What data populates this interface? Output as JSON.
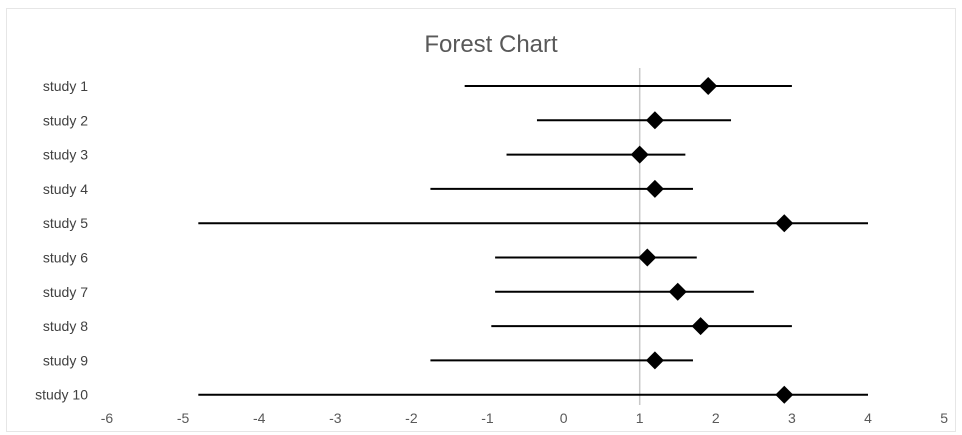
{
  "chart_data": {
    "type": "forest",
    "title": "Forest Chart",
    "xlim": [
      -6,
      5
    ],
    "x_ticks": [
      -6,
      -5,
      -4,
      -3,
      -2,
      -1,
      0,
      1,
      2,
      3,
      4,
      5
    ],
    "reference_line": 1,
    "grid": false,
    "legend": "none",
    "colors": {
      "marker": "#000000",
      "interval": "#000000",
      "reference": "#c8c8c8",
      "text": "#595959"
    },
    "studies": [
      {
        "label": "study 1",
        "estimate": 1.9,
        "lower": -1.3,
        "upper": 3.0
      },
      {
        "label": "study 2",
        "estimate": 1.2,
        "lower": -0.35,
        "upper": 2.2
      },
      {
        "label": "study 3",
        "estimate": 1.0,
        "lower": -0.75,
        "upper": 1.6
      },
      {
        "label": "study 4",
        "estimate": 1.2,
        "lower": -1.75,
        "upper": 1.7
      },
      {
        "label": "study 5",
        "estimate": 2.9,
        "lower": -4.8,
        "upper": 4.0
      },
      {
        "label": "study 6",
        "estimate": 1.1,
        "lower": -0.9,
        "upper": 1.75
      },
      {
        "label": "study 7",
        "estimate": 1.5,
        "lower": -0.9,
        "upper": 2.5
      },
      {
        "label": "study 8",
        "estimate": 1.8,
        "lower": -0.95,
        "upper": 3.0
      },
      {
        "label": "study 9",
        "estimate": 1.2,
        "lower": -1.75,
        "upper": 1.7
      },
      {
        "label": "study 10",
        "estimate": 2.9,
        "lower": -4.8,
        "upper": 4.0
      }
    ]
  }
}
